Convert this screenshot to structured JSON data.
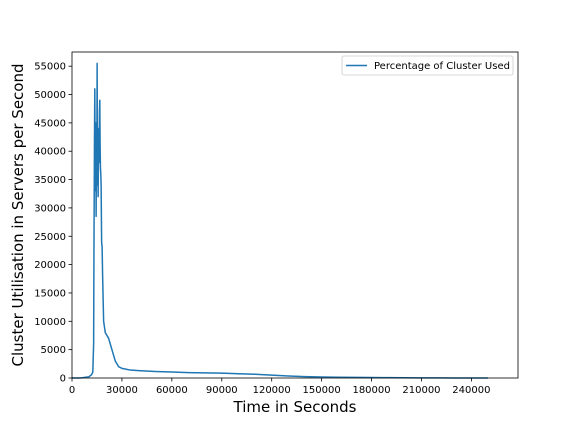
{
  "chart_data": {
    "type": "line",
    "title": "",
    "xlabel": "Time in Seconds",
    "ylabel": "Cluster Utilisation in Servers per Second",
    "xlim": [
      0,
      268000
    ],
    "ylim": [
      0,
      57500
    ],
    "x_ticks": [
      0,
      30000,
      60000,
      90000,
      120000,
      150000,
      180000,
      210000,
      240000
    ],
    "y_ticks": [
      0,
      5000,
      10000,
      15000,
      20000,
      25000,
      30000,
      35000,
      40000,
      45000,
      50000,
      55000
    ],
    "grid": false,
    "legend": {
      "position": "top-right"
    },
    "series": [
      {
        "name": "Percentage of Cluster Used",
        "color": "#1f77b4",
        "x": [
          0,
          5000,
          10000,
          11500,
          12500,
          13000,
          13200,
          13500,
          13700,
          13900,
          14100,
          14300,
          14500,
          14700,
          14900,
          15100,
          15300,
          15500,
          15700,
          15900,
          16100,
          16300,
          16500,
          16700,
          16900,
          17100,
          17300,
          17500,
          17800,
          18100,
          18400,
          18700,
          19000,
          20000,
          22000,
          24000,
          26000,
          28000,
          30000,
          35000,
          40000,
          50000,
          60000,
          70000,
          80000,
          90000,
          100000,
          110000,
          120000,
          130000,
          140000,
          150000,
          160000,
          170000,
          180000,
          190000,
          200000,
          210000,
          220000,
          230000,
          240000,
          250000
        ],
        "y": [
          0,
          0,
          200,
          500,
          1000,
          6000,
          23000,
          42000,
          51000,
          38000,
          33000,
          45000,
          28500,
          42000,
          34000,
          55500,
          36000,
          41000,
          32000,
          39000,
          44000,
          38000,
          47000,
          49000,
          41000,
          37000,
          36000,
          34000,
          24000,
          23000,
          18000,
          14000,
          10000,
          8000,
          7000,
          5000,
          3000,
          2000,
          1700,
          1400,
          1300,
          1150,
          1050,
          950,
          900,
          850,
          750,
          650,
          500,
          350,
          250,
          180,
          130,
          100,
          80,
          60,
          40,
          30,
          20,
          10,
          5,
          0
        ]
      }
    ]
  }
}
